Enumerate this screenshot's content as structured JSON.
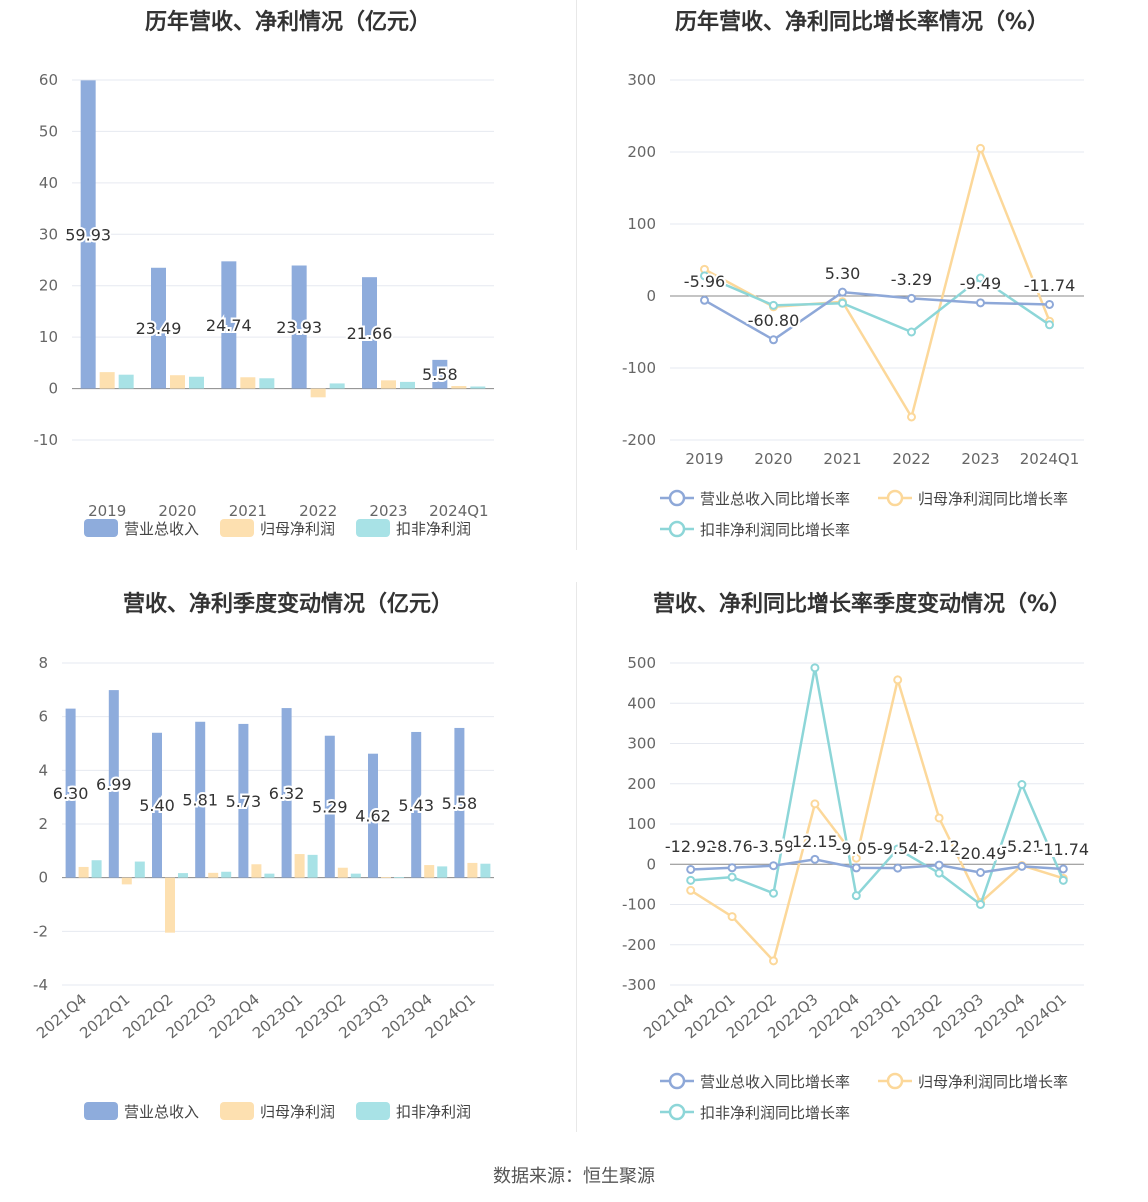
{
  "colors": {
    "revenue": "#8eacdc",
    "net_profit": "#fde0b0",
    "deducted_profit": "#a8e2e6",
    "revenue_line": "#8ea8d8",
    "net_line": "#fcd89a",
    "deducted_line": "#8dd6d8"
  },
  "source_text": "数据来源：恒生聚源",
  "legend": {
    "revenue": "营业总收入",
    "net_profit": "归母净利润",
    "deducted_profit": "扣非净利润",
    "revenue_growth": "营业总收入同比增长率",
    "net_growth": "归母净利润同比增长率",
    "deducted_growth": "扣非净利润同比增长率"
  },
  "chart_data": [
    {
      "id": "annual_values",
      "type": "bar",
      "title": "历年营收、净利情况（亿元）",
      "categories": [
        "2019",
        "2020",
        "2021",
        "2022",
        "2023",
        "2024Q1"
      ],
      "ylim": [
        -10,
        60
      ],
      "yticks": [
        -10,
        0,
        10,
        20,
        30,
        40,
        50,
        60
      ],
      "series": [
        {
          "name": "营业总收入",
          "values": [
            59.93,
            23.49,
            24.74,
            23.93,
            21.66,
            5.58
          ]
        },
        {
          "name": "归母净利润",
          "values": [
            3.2,
            2.6,
            2.2,
            -1.7,
            1.6,
            0.5
          ]
        },
        {
          "name": "扣非净利润",
          "values": [
            2.7,
            2.3,
            2.0,
            1.0,
            1.3,
            0.4
          ]
        }
      ],
      "data_labels": [
        "59.93",
        "23.49",
        "24.74",
        "23.93",
        "21.66",
        "5.58"
      ],
      "legend_position": "bottom",
      "grid": true
    },
    {
      "id": "annual_growth",
      "type": "line",
      "title": "历年营收、净利同比增长率情况（%）",
      "categories": [
        "2019",
        "2020",
        "2021",
        "2022",
        "2023",
        "2024Q1"
      ],
      "ylim": [
        -200,
        300
      ],
      "yticks": [
        -200,
        -100,
        0,
        100,
        200,
        300
      ],
      "series": [
        {
          "name": "营业总收入同比增长率",
          "values": [
            -5.96,
            -60.8,
            5.3,
            -3.29,
            -9.49,
            -11.74
          ]
        },
        {
          "name": "归母净利润同比增长率",
          "values": [
            37,
            -15,
            -8,
            -168,
            205,
            -35
          ]
        },
        {
          "name": "扣非净利润同比增长率",
          "values": [
            28,
            -13,
            -10,
            -50,
            25,
            -40
          ]
        }
      ],
      "data_labels": [
        "-5.96",
        "-60.80",
        "5.30",
        "-3.29",
        "-9.49",
        "-11.74"
      ],
      "legend_position": "bottom",
      "grid": true
    },
    {
      "id": "quarterly_values",
      "type": "bar",
      "title": "营收、净利季度变动情况（亿元）",
      "categories": [
        "2021Q4",
        "2022Q1",
        "2022Q2",
        "2022Q3",
        "2022Q4",
        "2023Q1",
        "2023Q2",
        "2023Q3",
        "2023Q4",
        "2024Q1"
      ],
      "ylim": [
        -4,
        8
      ],
      "yticks": [
        -4,
        -2,
        0,
        2,
        4,
        6,
        8
      ],
      "series": [
        {
          "name": "营业总收入",
          "values": [
            6.3,
            6.99,
            5.4,
            5.81,
            5.73,
            6.32,
            5.29,
            4.62,
            5.43,
            5.58
          ]
        },
        {
          "name": "归母净利润",
          "values": [
            0.4,
            -0.25,
            -2.05,
            0.18,
            0.5,
            0.88,
            0.37,
            0.02,
            0.47,
            0.55
          ]
        },
        {
          "name": "扣非净利润",
          "values": [
            0.65,
            0.6,
            0.17,
            0.22,
            0.15,
            0.85,
            0.15,
            0.02,
            0.42,
            0.52
          ]
        }
      ],
      "data_labels": [
        "6.30",
        "6.99",
        "5.40",
        "5.81",
        "5.73",
        "6.32",
        "5.29",
        "4.62",
        "5.43",
        "5.58"
      ],
      "legend_position": "bottom",
      "grid": true
    },
    {
      "id": "quarterly_growth",
      "type": "line",
      "title": "营收、净利同比增长率季度变动情况（%）",
      "categories": [
        "2021Q4",
        "2022Q1",
        "2022Q2",
        "2022Q3",
        "2022Q4",
        "2023Q1",
        "2023Q2",
        "2023Q3",
        "2023Q4",
        "2024Q1"
      ],
      "ylim": [
        -300,
        500
      ],
      "yticks": [
        -300,
        -200,
        -100,
        0,
        100,
        200,
        300,
        400,
        500
      ],
      "series": [
        {
          "name": "营业总收入同比增长率",
          "values": [
            -12.92,
            -8.76,
            -3.59,
            12.15,
            -9.05,
            -9.54,
            -2.12,
            -20.49,
            -5.21,
            -11.74
          ]
        },
        {
          "name": "归母净利润同比增长率",
          "values": [
            -65,
            -130,
            -240,
            150,
            15,
            458,
            115,
            -95,
            -3,
            -35
          ]
        },
        {
          "name": "扣非净利润同比增长率",
          "values": [
            -40,
            -32,
            -72,
            488,
            -78,
            38,
            -22,
            -100,
            198,
            -40
          ]
        }
      ],
      "data_labels": [
        "-12.92",
        "-8.76",
        "-3.59",
        "12.15",
        "-9.05",
        "-9.54",
        "-2.12",
        "-20.49",
        "-5.21",
        "-11.74"
      ],
      "legend_position": "bottom",
      "grid": true
    }
  ]
}
